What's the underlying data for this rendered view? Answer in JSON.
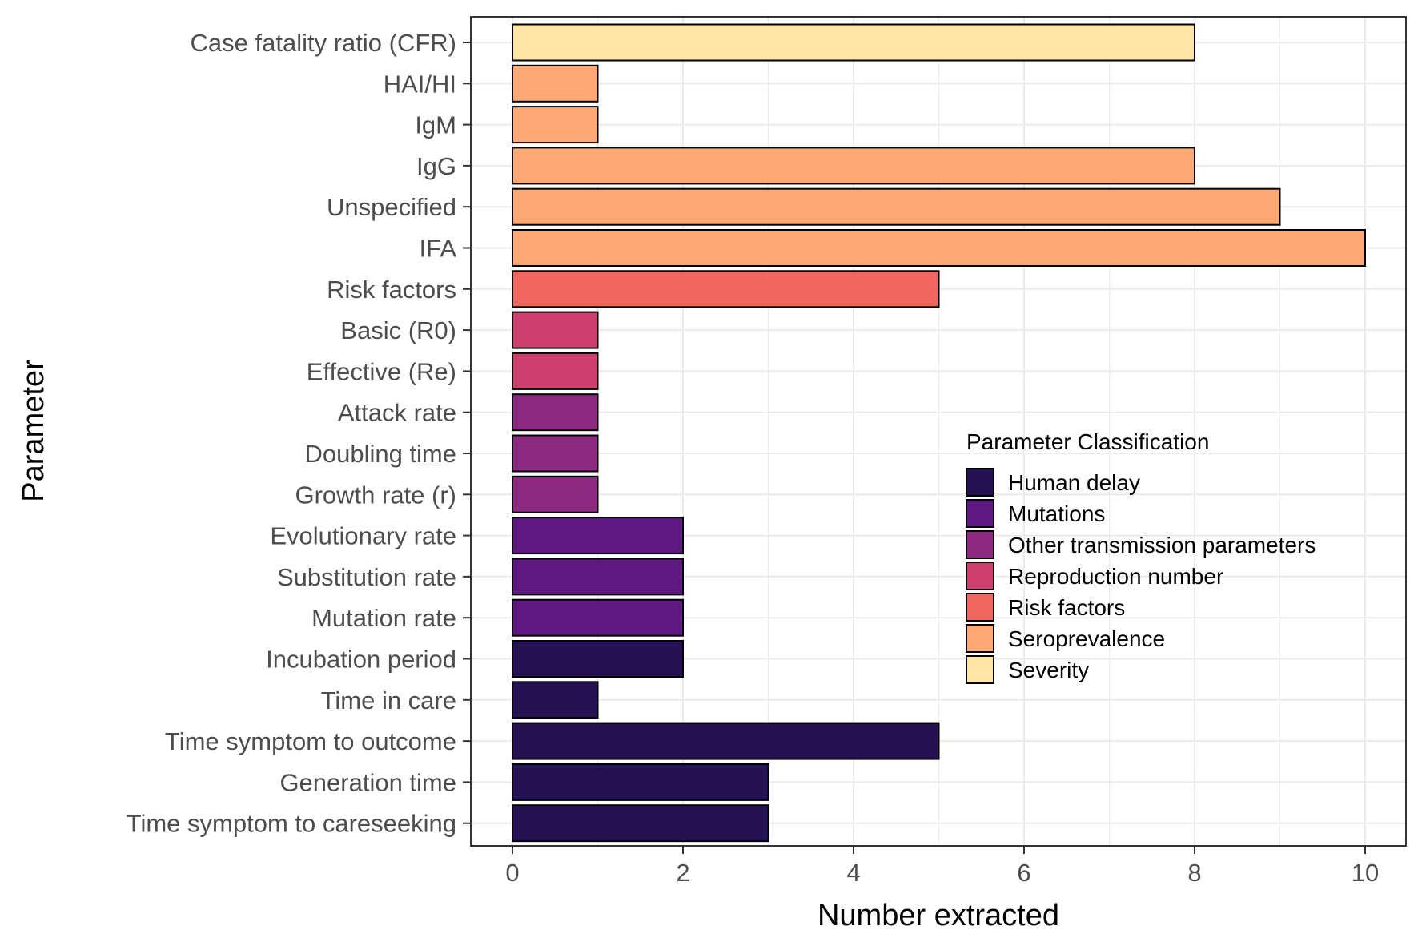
{
  "chart_data": {
    "type": "bar",
    "orientation": "horizontal",
    "title": "",
    "xlabel": "Number extracted",
    "ylabel": "Parameter",
    "xlim": [
      0,
      10
    ],
    "x_ticks": [
      0,
      2,
      4,
      6,
      8,
      10
    ],
    "grid": true,
    "legend": {
      "title": "Parameter Classification",
      "placement": "inside-right",
      "entries": [
        {
          "name": "Human delay",
          "color": "#251255"
        },
        {
          "name": "Mutations",
          "color": "#5f187f"
        },
        {
          "name": "Other transmission parameters",
          "color": "#8c2981"
        },
        {
          "name": "Reproduction number",
          "color": "#cd4071"
        },
        {
          "name": "Risk factors",
          "color": "#f1675d"
        },
        {
          "name": "Seroprevalence",
          "color": "#fea973"
        },
        {
          "name": "Severity",
          "color": "#fde6a7"
        }
      ]
    },
    "bars": [
      {
        "label": "Case fatality ratio (CFR)",
        "value": 8,
        "class": "Severity"
      },
      {
        "label": "HAI/HI",
        "value": 1,
        "class": "Seroprevalence"
      },
      {
        "label": "IgM",
        "value": 1,
        "class": "Seroprevalence"
      },
      {
        "label": "IgG",
        "value": 8,
        "class": "Seroprevalence"
      },
      {
        "label": "Unspecified",
        "value": 9,
        "class": "Seroprevalence"
      },
      {
        "label": "IFA",
        "value": 10,
        "class": "Seroprevalence"
      },
      {
        "label": "Risk factors",
        "value": 5,
        "class": "Risk factors"
      },
      {
        "label": "Basic (R0)",
        "value": 1,
        "class": "Reproduction number"
      },
      {
        "label": "Effective (Re)",
        "value": 1,
        "class": "Reproduction number"
      },
      {
        "label": "Attack rate",
        "value": 1,
        "class": "Other transmission parameters"
      },
      {
        "label": "Doubling time",
        "value": 1,
        "class": "Other transmission parameters"
      },
      {
        "label": "Growth rate (r)",
        "value": 1,
        "class": "Other transmission parameters"
      },
      {
        "label": "Evolutionary rate",
        "value": 2,
        "class": "Mutations"
      },
      {
        "label": "Substitution rate",
        "value": 2,
        "class": "Mutations"
      },
      {
        "label": "Mutation rate",
        "value": 2,
        "class": "Mutations"
      },
      {
        "label": "Incubation period",
        "value": 2,
        "class": "Human delay"
      },
      {
        "label": "Time in care",
        "value": 1,
        "class": "Human delay"
      },
      {
        "label": "Time symptom to outcome",
        "value": 5,
        "class": "Human delay"
      },
      {
        "label": "Generation time",
        "value": 3,
        "class": "Human delay"
      },
      {
        "label": "Time symptom to careseeking",
        "value": 3,
        "class": "Human delay"
      }
    ]
  }
}
